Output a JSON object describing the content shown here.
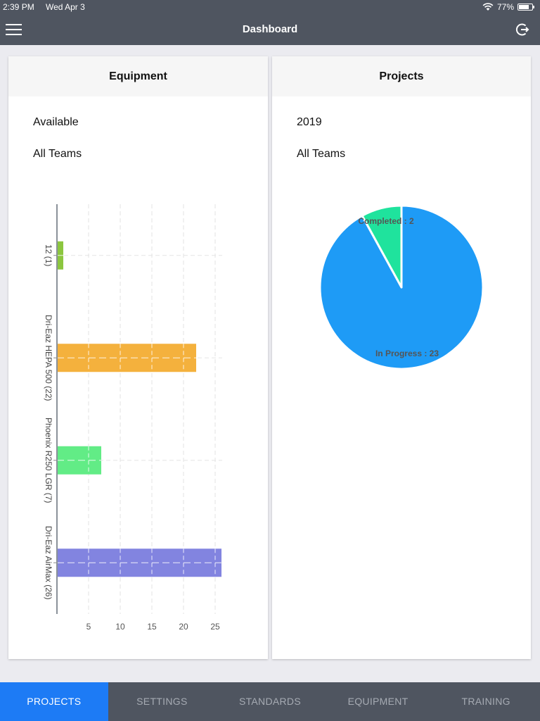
{
  "status_bar": {
    "time": "2:39 PM",
    "date": "Wed Apr 3",
    "battery": "77%",
    "battery_level": 0.77
  },
  "header": {
    "title": "Dashboard"
  },
  "equipment_card": {
    "title": "Equipment",
    "filter_status": "Available",
    "filter_team": "All Teams"
  },
  "projects_card": {
    "title": "Projects",
    "filter_year": "2019",
    "filter_team": "All Teams"
  },
  "equipment_chart": {
    "type": "bar",
    "orientation": "horizontal",
    "categories": [
      "12 (1)",
      "Dri-Eaz HEPA 500 (22)",
      "Phoenix R250 LGR (7)",
      "Dri-Eaz AirMax (26)"
    ],
    "values": [
      1,
      22,
      7,
      26
    ],
    "colors": [
      "#8cc63f",
      "#f4b13d",
      "#62ec86",
      "#8284e0"
    ],
    "x_ticks": [
      "5",
      "10",
      "15",
      "20",
      "25"
    ],
    "x_tick_values": [
      5,
      10,
      15,
      20,
      25
    ],
    "xlim": [
      0,
      26
    ],
    "grid": true
  },
  "projects_chart": {
    "type": "pie",
    "slices": [
      {
        "label": "In Progress : 23",
        "value": 23,
        "color": "#1e9bf6"
      },
      {
        "label": "Completed : 2",
        "value": 2,
        "color": "#1fe39d"
      }
    ]
  },
  "tabs": [
    {
      "label": "PROJECTS",
      "active": true
    },
    {
      "label": "SETTINGS",
      "active": false
    },
    {
      "label": "STANDARDS",
      "active": false
    },
    {
      "label": "EQUIPMENT",
      "active": false
    },
    {
      "label": "TRAINING",
      "active": false
    }
  ]
}
